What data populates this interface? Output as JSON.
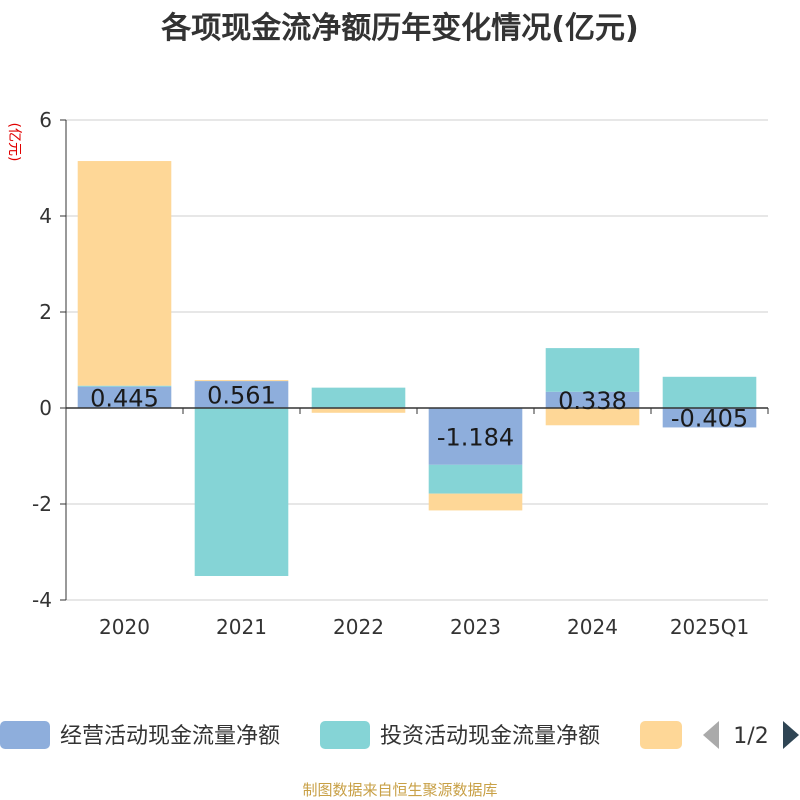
{
  "chart_data": {
    "type": "bar",
    "stacked": true,
    "title": "各项现金流净额历年变化情况(亿元)",
    "ylabel": "(亿元)",
    "xlabel": "",
    "categories": [
      "2020",
      "2021",
      "2022",
      "2023",
      "2024",
      "2025Q1"
    ],
    "ylim": [
      -4,
      6
    ],
    "yticks": [
      -4,
      -2,
      0,
      2,
      4,
      6
    ],
    "grid": true,
    "series": [
      {
        "name": "经营活动现金流量净额",
        "color": "#8eaedc",
        "values": [
          0.445,
          0.561,
          0.014,
          -1.184,
          0.338,
          -0.405
        ],
        "labels": [
          "0.445",
          "0.561",
          "",
          "-1.184",
          "0.338",
          "-0.405"
        ]
      },
      {
        "name": "投资活动现金流量净额",
        "color": "#85d4d6",
        "values": [
          0.02,
          -3.5,
          0.41,
          -0.6,
          0.91,
          0.65
        ],
        "labels": [
          "",
          "",
          "",
          "",
          "",
          ""
        ]
      },
      {
        "name": "",
        "color": "#fed797",
        "values": [
          4.68,
          0.02,
          -0.1,
          -0.35,
          -0.36,
          0
        ],
        "labels": [
          "",
          "",
          "",
          "",
          "",
          ""
        ]
      }
    ],
    "legend": {
      "position": "bottom",
      "page": "1/2"
    }
  },
  "source": "制图数据来自恒生聚源数据库"
}
